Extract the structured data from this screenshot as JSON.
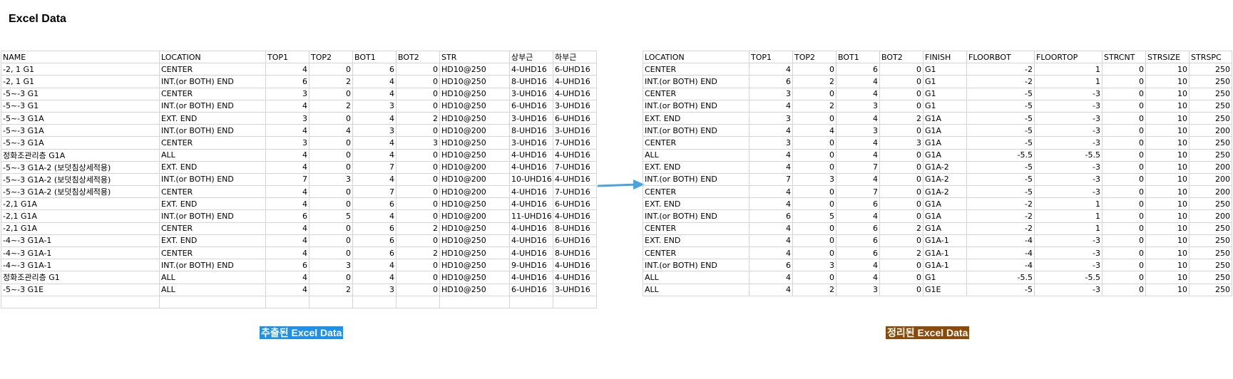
{
  "page_title": "Excel Data",
  "colors": {
    "arrow": "#4aa3df",
    "caption_left_bg": "#1e90e8",
    "caption_right_bg": "#8a4a0a"
  },
  "extracted": {
    "caption": "추출된 Excel  Data",
    "headers": [
      "NAME",
      "LOCATION",
      "TOP1",
      "TOP2",
      "BOT1",
      "BOT2",
      "STR",
      "상부근",
      "하부근"
    ],
    "rows": [
      [
        "-2, 1 G1",
        "CENTER",
        "4",
        "0",
        "6",
        "0",
        "HD10@250",
        "4-UHD16",
        "6-UHD16"
      ],
      [
        "-2, 1 G1",
        "INT.(or BOTH) END",
        "6",
        "2",
        "4",
        "0",
        "HD10@250",
        "8-UHD16",
        "4-UHD16"
      ],
      [
        "-5~-3 G1",
        "CENTER",
        "3",
        "0",
        "4",
        "0",
        "HD10@250",
        "3-UHD16",
        "4-UHD16"
      ],
      [
        "-5~-3 G1",
        "INT.(or BOTH) END",
        "4",
        "2",
        "3",
        "0",
        "HD10@250",
        "6-UHD16",
        "3-UHD16"
      ],
      [
        "-5~-3 G1A",
        "EXT. END",
        "3",
        "0",
        "4",
        "2",
        "HD10@250",
        "3-UHD16",
        "6-UHD16"
      ],
      [
        "-5~-3 G1A",
        "INT.(or BOTH) END",
        "4",
        "4",
        "3",
        "0",
        "HD10@200",
        "8-UHD16",
        "3-UHD16"
      ],
      [
        "-5~-3 G1A",
        "CENTER",
        "3",
        "0",
        "4",
        "3",
        "HD10@250",
        "3-UHD16",
        "7-UHD16"
      ],
      [
        "정화조관리층 G1A",
        "ALL",
        "4",
        "0",
        "4",
        "0",
        "HD10@250",
        "4-UHD16",
        "4-UHD16"
      ],
      [
        "-5~-3 G1A-2 (보덧침상세적용)",
        "EXT. END",
        "4",
        "0",
        "7",
        "0",
        "HD10@200",
        "4-UHD16",
        "7-UHD16"
      ],
      [
        "-5~-3 G1A-2 (보덧침상세적용)",
        "INT.(or BOTH) END",
        "7",
        "3",
        "4",
        "0",
        "HD10@200",
        "10-UHD16",
        "4-UHD16"
      ],
      [
        "-5~-3 G1A-2 (보덧침상세적용)",
        "CENTER",
        "4",
        "0",
        "7",
        "0",
        "HD10@200",
        "4-UHD16",
        "7-UHD16"
      ],
      [
        "-2,1 G1A",
        "EXT. END",
        "4",
        "0",
        "6",
        "0",
        "HD10@250",
        "4-UHD16",
        "6-UHD16"
      ],
      [
        "-2,1 G1A",
        "INT.(or BOTH) END",
        "6",
        "5",
        "4",
        "0",
        "HD10@200",
        "11-UHD16",
        "4-UHD16"
      ],
      [
        "-2,1 G1A",
        "CENTER",
        "4",
        "0",
        "6",
        "2",
        "HD10@250",
        "4-UHD16",
        "8-UHD16"
      ],
      [
        "-4~-3 G1A-1",
        "EXT. END",
        "4",
        "0",
        "6",
        "0",
        "HD10@250",
        "4-UHD16",
        "6-UHD16"
      ],
      [
        "-4~-3 G1A-1",
        "CENTER",
        "4",
        "0",
        "6",
        "2",
        "HD10@250",
        "4-UHD16",
        "8-UHD16"
      ],
      [
        "-4~-3 G1A-1",
        "INT.(or BOTH) END",
        "6",
        "3",
        "4",
        "0",
        "HD10@250",
        "9-UHD16",
        "4-UHD16"
      ],
      [
        "정화조관리층 G1",
        "ALL",
        "4",
        "0",
        "4",
        "0",
        "HD10@250",
        "4-UHD16",
        "4-UHD16"
      ],
      [
        "-5~-3 G1E",
        "ALL",
        "4",
        "2",
        "3",
        "0",
        "HD10@250",
        "6-UHD16",
        "3-UHD16"
      ],
      [
        "",
        "",
        "",
        "",
        "",
        "",
        "",
        "",
        ""
      ]
    ]
  },
  "organized": {
    "caption": "정리된 Excel Data",
    "headers": [
      "LOCATION",
      "TOP1",
      "TOP2",
      "BOT1",
      "BOT2",
      "FINISH",
      "FLOORBOT",
      "FLOORTOP",
      "STRCNT",
      "STRSIZE",
      "STRSPC"
    ],
    "rows": [
      [
        "CENTER",
        "4",
        "0",
        "6",
        "0",
        "G1",
        "-2",
        "1",
        "0",
        "10",
        "250"
      ],
      [
        "INT.(or BOTH) END",
        "6",
        "2",
        "4",
        "0",
        "G1",
        "-2",
        "1",
        "0",
        "10",
        "250"
      ],
      [
        "CENTER",
        "3",
        "0",
        "4",
        "0",
        "G1",
        "-5",
        "-3",
        "0",
        "10",
        "250"
      ],
      [
        "INT.(or BOTH) END",
        "4",
        "2",
        "3",
        "0",
        "G1",
        "-5",
        "-3",
        "0",
        "10",
        "250"
      ],
      [
        "EXT. END",
        "3",
        "0",
        "4",
        "2",
        "G1A",
        "-5",
        "-3",
        "0",
        "10",
        "250"
      ],
      [
        "INT.(or BOTH) END",
        "4",
        "4",
        "3",
        "0",
        "G1A",
        "-5",
        "-3",
        "0",
        "10",
        "200"
      ],
      [
        "CENTER",
        "3",
        "0",
        "4",
        "3",
        "G1A",
        "-5",
        "-3",
        "0",
        "10",
        "250"
      ],
      [
        "ALL",
        "4",
        "0",
        "4",
        "0",
        "G1A",
        "-5.5",
        "-5.5",
        "0",
        "10",
        "250"
      ],
      [
        "EXT. END",
        "4",
        "0",
        "7",
        "0",
        "G1A-2",
        "-5",
        "-3",
        "0",
        "10",
        "200"
      ],
      [
        "INT.(or BOTH) END",
        "7",
        "3",
        "4",
        "0",
        "G1A-2",
        "-5",
        "-3",
        "0",
        "10",
        "200"
      ],
      [
        "CENTER",
        "4",
        "0",
        "7",
        "0",
        "G1A-2",
        "-5",
        "-3",
        "0",
        "10",
        "200"
      ],
      [
        "EXT. END",
        "4",
        "0",
        "6",
        "0",
        "G1A",
        "-2",
        "1",
        "0",
        "10",
        "250"
      ],
      [
        "INT.(or BOTH) END",
        "6",
        "5",
        "4",
        "0",
        "G1A",
        "-2",
        "1",
        "0",
        "10",
        "200"
      ],
      [
        "CENTER",
        "4",
        "0",
        "6",
        "2",
        "G1A",
        "-2",
        "1",
        "0",
        "10",
        "250"
      ],
      [
        "EXT. END",
        "4",
        "0",
        "6",
        "0",
        "G1A-1",
        "-4",
        "-3",
        "0",
        "10",
        "250"
      ],
      [
        "CENTER",
        "4",
        "0",
        "6",
        "2",
        "G1A-1",
        "-4",
        "-3",
        "0",
        "10",
        "250"
      ],
      [
        "INT.(or BOTH) END",
        "6",
        "3",
        "4",
        "0",
        "G1A-1",
        "-4",
        "-3",
        "0",
        "10",
        "250"
      ],
      [
        "ALL",
        "4",
        "0",
        "4",
        "0",
        "G1",
        "-5.5",
        "-5.5",
        "0",
        "10",
        "250"
      ],
      [
        "ALL",
        "4",
        "2",
        "3",
        "0",
        "G1E",
        "-5",
        "-3",
        "0",
        "10",
        "250"
      ]
    ]
  }
}
